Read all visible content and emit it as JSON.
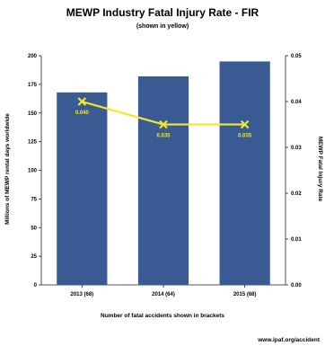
{
  "chart_data": {
    "type": "bar",
    "title": "MEWP Industry Fatal Injury Rate - FIR",
    "subtitle": "(shown in yellow)",
    "categories": [
      "2013 (68)",
      "2014 (64)",
      "2015 (68)"
    ],
    "series": [
      {
        "type": "bar",
        "values": [
          168,
          182,
          195
        ]
      },
      {
        "type": "line",
        "values": [
          0.04,
          0.035,
          0.035
        ],
        "data_labels": [
          "0.040",
          "0.035",
          "0.035"
        ]
      }
    ],
    "xlabel": "Number of fatal accidents shown in brackets",
    "ylabel": "Millions of MEWP rental days worldwide",
    "y2label": "MEWP Fatal Injury Rate",
    "ylim": [
      0,
      200
    ],
    "y2lim": [
      0,
      0.05
    ],
    "yticks": [
      "0",
      "25",
      "50",
      "75",
      "100",
      "125",
      "150",
      "175",
      "200"
    ],
    "y2ticks": [
      "0.00",
      "0.01",
      "0.02",
      "0.03",
      "0.04",
      "0.05"
    ],
    "colors": {
      "bar": "#3a5a93",
      "line": "#f2e829",
      "line_label": "#f2e829"
    },
    "grid": false
  },
  "footer": {
    "url": "www.ipaf.org/accident"
  }
}
